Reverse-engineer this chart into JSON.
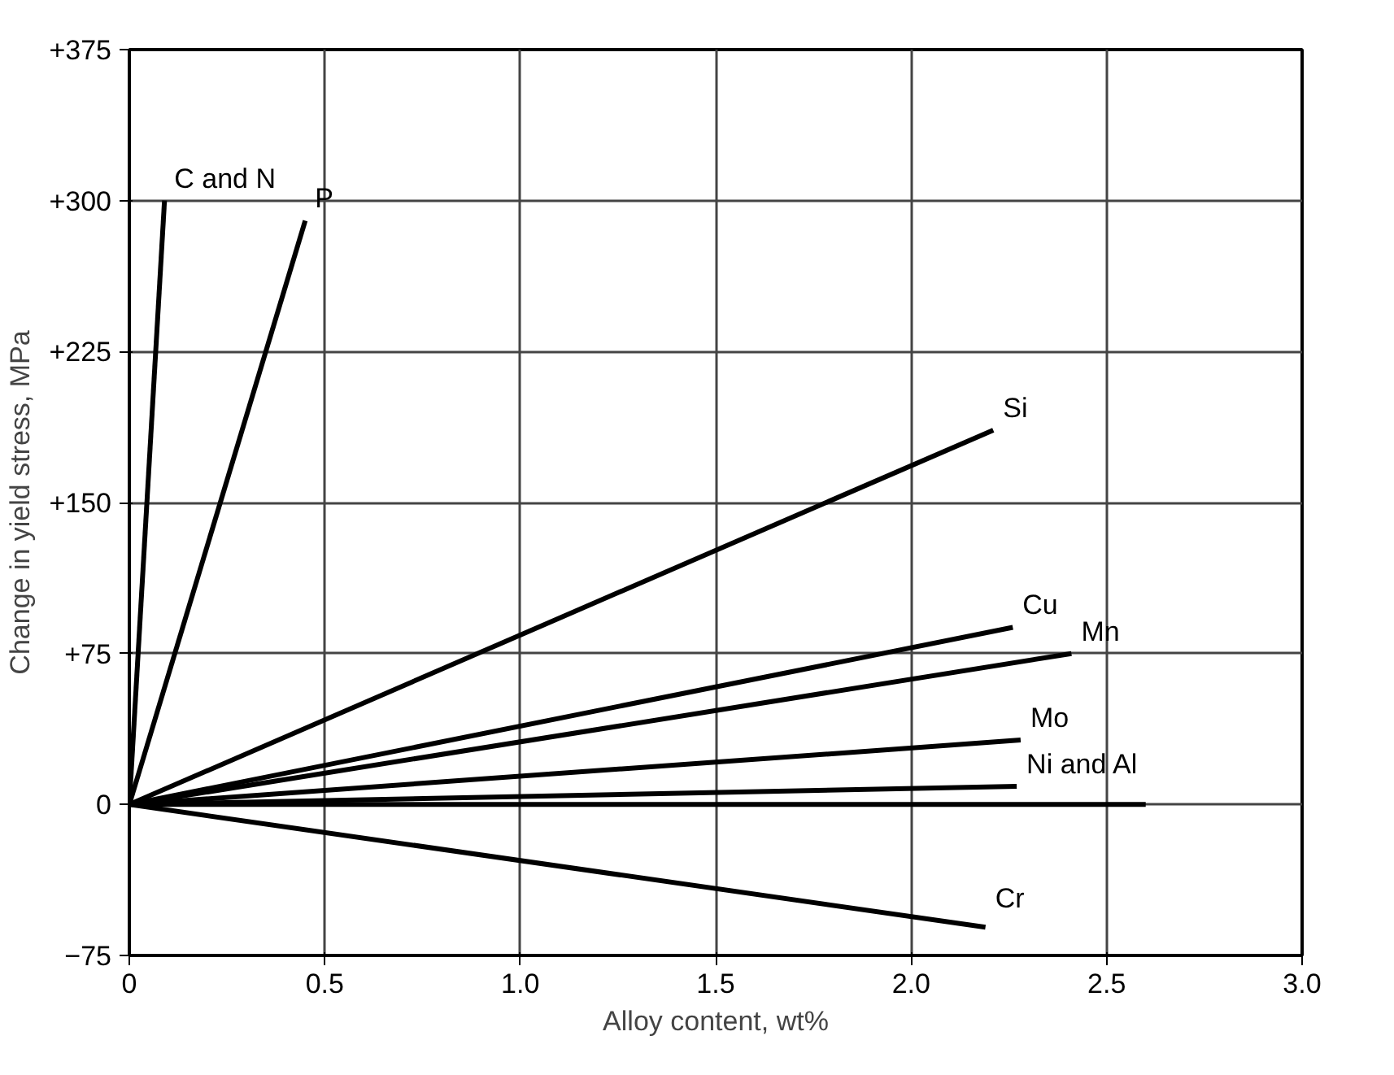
{
  "chart_data": {
    "type": "line",
    "xlabel": "Alloy content, wt%",
    "ylabel": "Change in yield stress, MPa",
    "series": [
      {
        "name": "C and N",
        "color": "#000000",
        "x": [
          0,
          0.09
        ],
        "values": [
          0,
          300
        ]
      },
      {
        "name": "P",
        "color": "#000000",
        "x": [
          0,
          0.45
        ],
        "values": [
          0,
          290
        ]
      },
      {
        "name": "Si",
        "color": "#000000",
        "x": [
          0,
          2.21
        ],
        "values": [
          0,
          186
        ]
      },
      {
        "name": "Cu",
        "color": "#000000",
        "x": [
          0,
          2.26
        ],
        "values": [
          0,
          88
        ]
      },
      {
        "name": "Mn",
        "color": "#000000",
        "x": [
          0,
          2.41
        ],
        "values": [
          0,
          75
        ]
      },
      {
        "name": "Mo",
        "color": "#000000",
        "x": [
          0,
          2.28
        ],
        "values": [
          0,
          32
        ]
      },
      {
        "name": "Ni and Al",
        "color": "#000000",
        "x": [
          0,
          2.27
        ],
        "values": [
          0,
          9
        ]
      },
      {
        "color": "#000000",
        "x": [
          0,
          2.6
        ],
        "values": [
          0,
          0
        ]
      },
      {
        "name": "Cr",
        "color": "#000000",
        "x": [
          0,
          2.19
        ],
        "values": [
          0,
          -61
        ]
      }
    ],
    "xlim": [
      0,
      3.0
    ],
    "ylim": [
      -75,
      375
    ],
    "xticks": [
      0,
      0.5,
      {
        "value": 1,
        "label": "1.0"
      },
      1.5,
      {
        "value": 2,
        "label": "2.0"
      },
      2.5,
      {
        "value": 3,
        "label": "3.0"
      }
    ],
    "yticks": [
      {
        "value": -75,
        "label": "−75"
      },
      0,
      {
        "value": 75,
        "label": "+75"
      },
      {
        "value": 150,
        "label": "+150"
      },
      {
        "value": 225,
        "label": "+225"
      },
      {
        "value": 300,
        "label": "+300"
      },
      {
        "value": 375,
        "label": "+375"
      }
    ],
    "grid": true,
    "line_style": "solid"
  }
}
